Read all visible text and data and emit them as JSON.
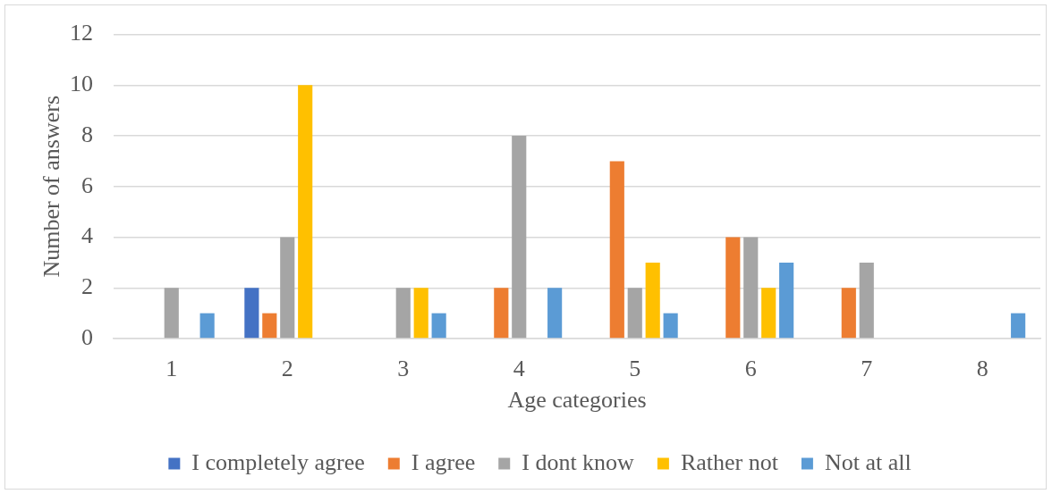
{
  "chart_data": {
    "type": "bar",
    "xlabel": "Age categories",
    "ylabel": "Number of answers",
    "categories": [
      "1",
      "2",
      "3",
      "4",
      "5",
      "6",
      "7",
      "8"
    ],
    "series": [
      {
        "name": "I completely agree",
        "color": "#4472c4",
        "values": [
          null,
          2,
          null,
          null,
          null,
          null,
          null,
          null
        ]
      },
      {
        "name": "I agree",
        "color": "#ed7d31",
        "values": [
          null,
          1,
          null,
          2,
          7,
          4,
          2,
          null
        ]
      },
      {
        "name": "I dont know",
        "color": "#a5a5a5",
        "values": [
          2,
          4,
          2,
          8,
          2,
          4,
          3,
          null
        ]
      },
      {
        "name": "Rather not",
        "color": "#ffc000",
        "values": [
          null,
          10,
          2,
          null,
          3,
          2,
          null,
          null
        ]
      },
      {
        "name": "Not at all",
        "color": "#5b9bd5",
        "values": [
          1,
          null,
          1,
          2,
          1,
          3,
          null,
          1
        ]
      }
    ],
    "ylim": [
      0,
      12
    ],
    "yticks": [
      0,
      2,
      4,
      6,
      8,
      10,
      12
    ],
    "grid": "y",
    "legend": "bottom"
  }
}
